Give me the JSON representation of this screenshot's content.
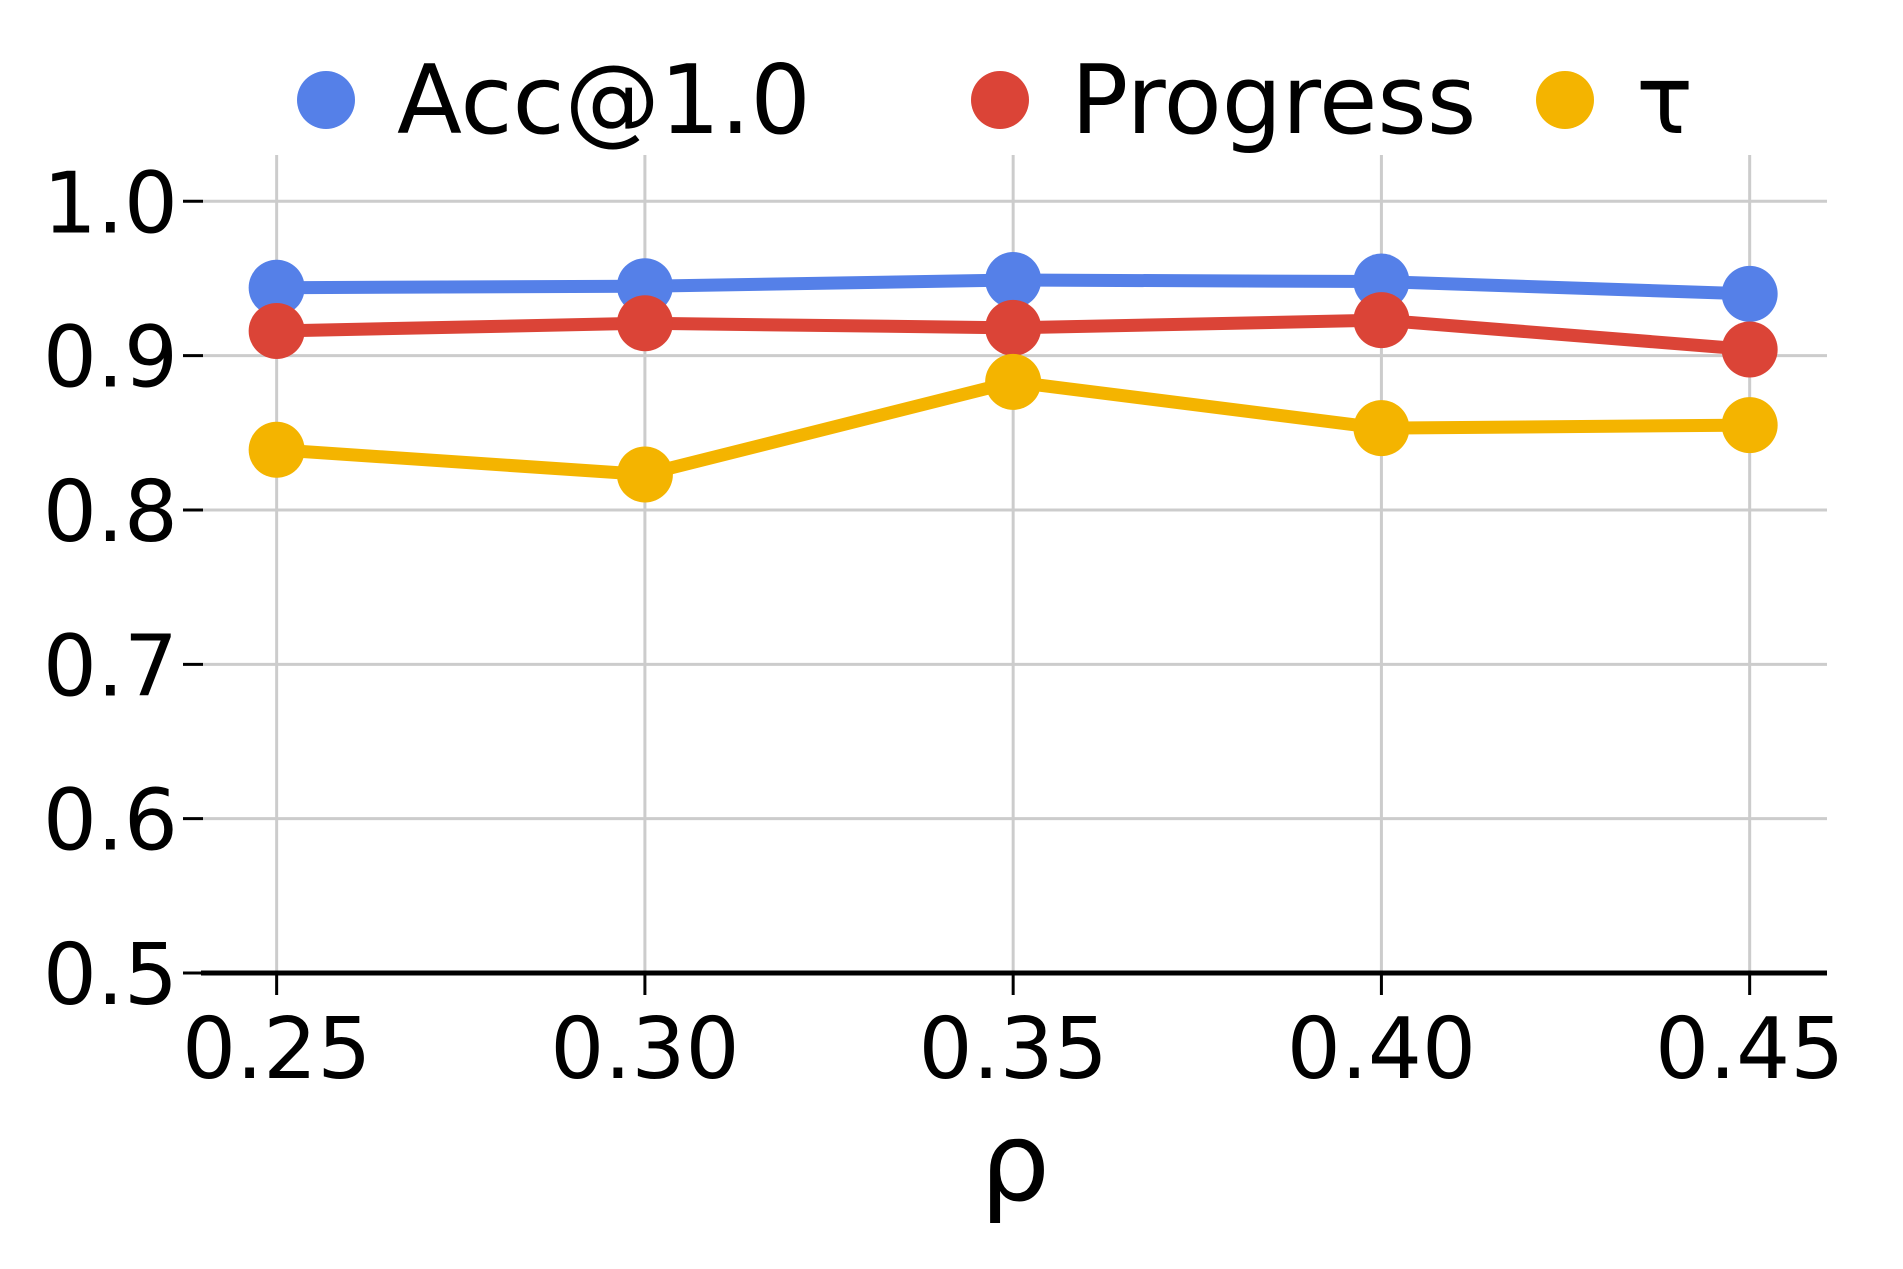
{
  "chart_data": {
    "type": "line",
    "x": [
      0.25,
      0.3,
      0.35,
      0.4,
      0.45
    ],
    "series": [
      {
        "name": "Acc@1.0",
        "color": "#5580E8",
        "values": [
          0.944,
          0.945,
          0.949,
          0.948,
          0.94
        ]
      },
      {
        "name": "Progress",
        "color": "#DB4437",
        "values": [
          0.916,
          0.921,
          0.918,
          0.923,
          0.904
        ]
      },
      {
        "name": "τ",
        "color": "#F4B400",
        "values": [
          0.839,
          0.823,
          0.883,
          0.853,
          0.855
        ]
      }
    ],
    "title": "",
    "xlabel": "ρ",
    "ylabel": "",
    "xlim": [
      0.24,
      0.4605
    ],
    "ylim": [
      0.5,
      1.03
    ],
    "x_tick_labels": [
      "0.25",
      "0.30",
      "0.35",
      "0.40",
      "0.45"
    ],
    "y_ticks": [
      0.5,
      0.6,
      0.7,
      0.8,
      0.9,
      1.0
    ],
    "y_tick_labels": [
      "0.5",
      "0.6",
      "0.7",
      "0.8",
      "0.9",
      "1.0"
    ],
    "grid": true,
    "legend_position": "top",
    "colors": {
      "grid": "#cccccc",
      "axis": "#000000",
      "background": "#ffffff",
      "text": "#000000"
    }
  }
}
